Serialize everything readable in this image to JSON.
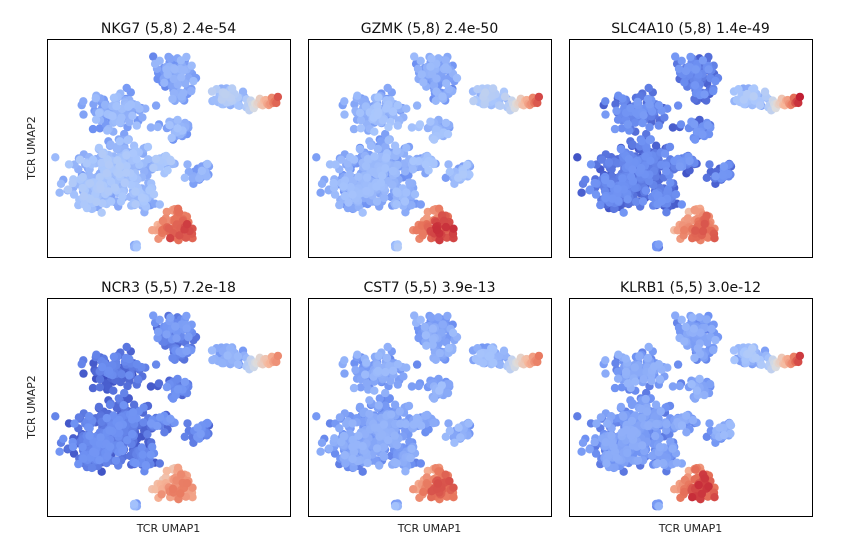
{
  "figure": {
    "xlabel": "TCR UMAP1",
    "ylabel": "TCR UMAP2",
    "colormap": [
      "#3b4cc0",
      "#6f92f3",
      "#aac7fd",
      "#dddddd",
      "#f7b89c",
      "#e7745b",
      "#b40426"
    ]
  },
  "chart_data": [
    {
      "type": "scatter",
      "title": "NKG7 (5,8) 2.4e-54",
      "gene": "NKG7",
      "clusters": "(5,8)",
      "pvalue": "2.4e-54",
      "xlabel": "",
      "ylabel": "TCR UMAP2",
      "ticks": false,
      "expression": {
        "big": 0.28,
        "upperleft": 0.24,
        "top": 0.22,
        "right": 0.32,
        "midright": 0.25,
        "tail": 0.88,
        "bottom": 0.86,
        "lower": 0.28,
        "small": 0.3
      }
    },
    {
      "type": "scatter",
      "title": "GZMK (5,8) 2.4e-50",
      "gene": "GZMK",
      "clusters": "(5,8)",
      "pvalue": "2.4e-50",
      "xlabel": "",
      "ylabel": "",
      "ticks": false,
      "expression": {
        "big": 0.24,
        "upperleft": 0.26,
        "top": 0.22,
        "right": 0.33,
        "midright": 0.27,
        "tail": 0.9,
        "bottom": 0.88,
        "lower": 0.26,
        "small": 0.3
      }
    },
    {
      "type": "scatter",
      "title": "SLC4A10 (5,8) 1.4e-49",
      "gene": "SLC4A10",
      "clusters": "(5,8)",
      "pvalue": "1.4e-49",
      "xlabel": "",
      "ylabel": "",
      "ticks": false,
      "expression": {
        "big": 0.1,
        "upperleft": 0.12,
        "top": 0.12,
        "right": 0.3,
        "midright": 0.12,
        "tail": 0.96,
        "bottom": 0.82,
        "lower": 0.12,
        "small": 0.15
      }
    },
    {
      "type": "scatter",
      "title": "NCR3 (5,5) 7.2e-18",
      "gene": "NCR3",
      "clusters": "(5,5)",
      "pvalue": "7.2e-18",
      "xlabel": "TCR UMAP1",
      "ylabel": "TCR UMAP2",
      "ticks": false,
      "expression": {
        "big": 0.1,
        "upperleft": 0.08,
        "top": 0.14,
        "right": 0.22,
        "midright": 0.12,
        "tail": 0.78,
        "bottom": 0.76,
        "lower": 0.12,
        "small": 0.25
      }
    },
    {
      "type": "scatter",
      "title": "CST7 (5,5) 3.9e-13",
      "gene": "CST7",
      "clusters": "(5,5)",
      "pvalue": "3.9e-13",
      "xlabel": "TCR UMAP1",
      "ylabel": "",
      "ticks": false,
      "expression": {
        "big": 0.2,
        "upperleft": 0.22,
        "top": 0.22,
        "right": 0.25,
        "midright": 0.24,
        "tail": 0.82,
        "bottom": 0.84,
        "lower": 0.2,
        "small": 0.25
      }
    },
    {
      "type": "scatter",
      "title": "KLRB1 (5,5) 3.0e-12",
      "gene": "KLRB1",
      "clusters": "(5,5)",
      "pvalue": "3.0e-12",
      "xlabel": "TCR UMAP1",
      "ylabel": "",
      "ticks": false,
      "expression": {
        "big": 0.18,
        "upperleft": 0.2,
        "top": 0.2,
        "right": 0.28,
        "midright": 0.22,
        "tail": 0.92,
        "bottom": 0.88,
        "lower": 0.2,
        "small": 0.2
      }
    }
  ]
}
